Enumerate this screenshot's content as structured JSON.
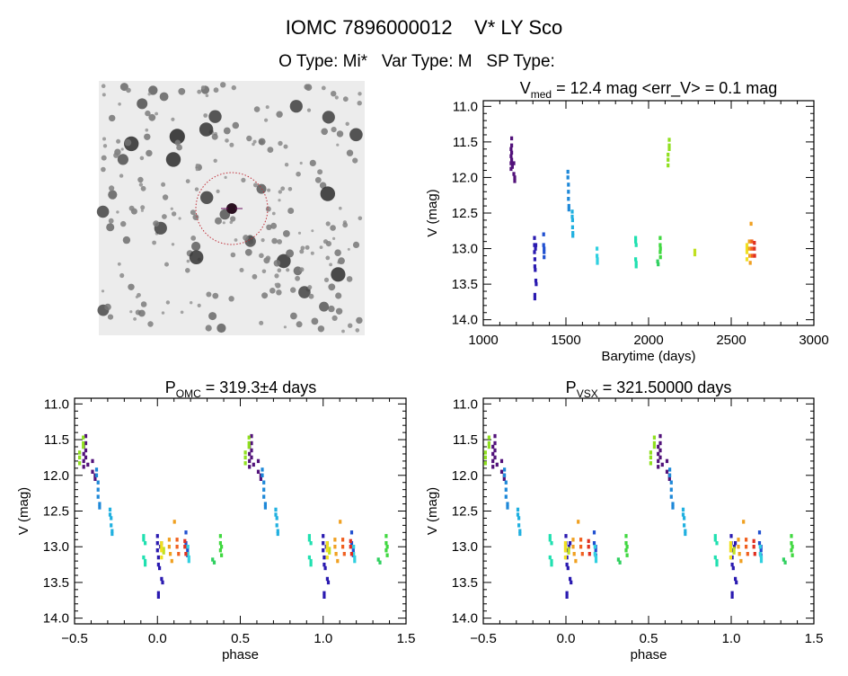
{
  "header": {
    "title": "IOMC 7896000012    V* LY Sco",
    "subtitle": "O Type: Mi*   Var Type: M   SP Type:"
  },
  "finder_image": {
    "circle_color": "#c0303a",
    "marker_color": "#6a1060"
  },
  "chart_data": [
    {
      "type": "scatter",
      "title_main": "V",
      "title_sub": "med",
      "title_rest": " = 12.4 mag <err_V> = 0.1 mag",
      "xlabel": "Barytime (days)",
      "ylabel": "V (mag)",
      "xlim": [
        1000,
        3000
      ],
      "ylim": [
        14.08,
        10.92
      ],
      "xticks": [
        "1000",
        "1500",
        "2000",
        "2500",
        "3000"
      ],
      "yticks": [
        "11.0",
        "11.5",
        "12.0",
        "12.5",
        "13.0",
        "13.5",
        "14.0"
      ],
      "inverted_y": true,
      "grid": false
    },
    {
      "type": "scatter",
      "title_main": "P",
      "title_sub": "OMC",
      "title_rest": " = 319.3±4 days",
      "period_days": 319.3,
      "xlabel": "phase",
      "ylabel": "V (mag)",
      "xlim": [
        -0.5,
        1.5
      ],
      "ylim": [
        14.08,
        10.92
      ],
      "xticks": [
        "−0.5",
        "0.0",
        "0.5",
        "1.0",
        "1.5"
      ],
      "yticks": [
        "11.0",
        "11.5",
        "12.0",
        "12.5",
        "13.0",
        "13.5",
        "14.0"
      ],
      "inverted_y": true,
      "grid": false
    },
    {
      "type": "scatter",
      "title_main": "P",
      "title_sub": "VSX",
      "title_rest": " = 321.50000 days",
      "period_days": 321.5,
      "xlabel": "phase",
      "ylabel": "V (mag)",
      "xlim": [
        -0.5,
        1.5
      ],
      "ylim": [
        14.08,
        10.92
      ],
      "xticks": [
        "−0.5",
        "0.0",
        "0.5",
        "1.0",
        "1.5"
      ],
      "yticks": [
        "11.0",
        "11.5",
        "12.0",
        "12.5",
        "13.0",
        "13.5",
        "14.0"
      ],
      "inverted_y": true,
      "grid": false
    }
  ],
  "observations": [
    {
      "color": "#52127a",
      "points": [
        [
          1168,
          11.6
        ],
        [
          1168,
          11.7
        ],
        [
          1168,
          11.8
        ],
        [
          1168,
          11.88
        ],
        [
          1172,
          11.45
        ],
        [
          1172,
          11.55
        ],
        [
          1172,
          11.65
        ],
        [
          1172,
          11.75
        ],
        [
          1176,
          11.85
        ],
        [
          1185,
          11.8
        ],
        [
          1185,
          11.95
        ],
        [
          1190,
          12.0
        ],
        [
          1190,
          12.05
        ]
      ]
    },
    {
      "color": "#2a1ab0",
      "points": [
        [
          1310,
          12.85
        ],
        [
          1310,
          12.95
        ],
        [
          1310,
          13.05
        ],
        [
          1312,
          13.15
        ],
        [
          1312,
          13.25
        ],
        [
          1314,
          13.3
        ],
        [
          1318,
          13.45
        ],
        [
          1320,
          13.5
        ],
        [
          1312,
          13.65
        ],
        [
          1312,
          13.7
        ],
        [
          1316,
          13.0
        ],
        [
          1318,
          12.95
        ]
      ]
    },
    {
      "color": "#2050d0",
      "points": [
        [
          1365,
          12.8
        ],
        [
          1365,
          12.95
        ],
        [
          1368,
          13.0
        ],
        [
          1368,
          13.05
        ],
        [
          1368,
          13.12
        ]
      ]
    },
    {
      "color": "#1e88d8",
      "points": [
        [
          1512,
          11.92
        ],
        [
          1512,
          12.0
        ],
        [
          1515,
          12.1
        ],
        [
          1515,
          12.2
        ],
        [
          1515,
          12.3
        ],
        [
          1518,
          12.4
        ],
        [
          1518,
          12.45
        ]
      ]
    },
    {
      "color": "#20b0e0",
      "points": [
        [
          1538,
          12.48
        ],
        [
          1538,
          12.55
        ],
        [
          1540,
          12.6
        ],
        [
          1540,
          12.7
        ],
        [
          1542,
          12.78
        ],
        [
          1542,
          12.82
        ]
      ]
    },
    {
      "color": "#30d0e0",
      "points": [
        [
          1688,
          13.0
        ],
        [
          1688,
          13.1
        ],
        [
          1690,
          13.15
        ],
        [
          1690,
          13.2
        ]
      ]
    },
    {
      "color": "#20e0b0",
      "points": [
        [
          1922,
          12.85
        ],
        [
          1922,
          12.9
        ],
        [
          1925,
          12.95
        ],
        [
          1922,
          13.15
        ],
        [
          1925,
          13.2
        ],
        [
          1925,
          13.25
        ]
      ]
    },
    {
      "color": "#30d060",
      "points": [
        [
          2055,
          13.18
        ],
        [
          2058,
          13.22
        ]
      ]
    },
    {
      "color": "#40d840",
      "points": [
        [
          2070,
          12.85
        ],
        [
          2070,
          12.95
        ],
        [
          2072,
          13.0
        ],
        [
          2070,
          13.05
        ],
        [
          2072,
          13.12
        ]
      ]
    },
    {
      "color": "#90e020",
      "points": [
        [
          2125,
          11.47
        ],
        [
          2125,
          11.55
        ],
        [
          2125,
          11.6
        ],
        [
          2118,
          11.68
        ],
        [
          2118,
          11.75
        ],
        [
          2118,
          11.83
        ]
      ]
    },
    {
      "color": "#c0e020",
      "points": [
        [
          2280,
          13.03
        ],
        [
          2280,
          13.08
        ]
      ]
    },
    {
      "color": "#f0e020",
      "points": [
        [
          2595,
          12.95
        ],
        [
          2595,
          13.0
        ],
        [
          2595,
          13.05
        ],
        [
          2595,
          13.15
        ]
      ]
    },
    {
      "color": "#f0a020",
      "points": [
        [
          2610,
          12.9
        ],
        [
          2610,
          13.0
        ],
        [
          2612,
          13.1
        ],
        [
          2615,
          13.2
        ],
        [
          2620,
          12.65
        ]
      ]
    },
    {
      "color": "#f06020",
      "points": [
        [
          2625,
          12.9
        ],
        [
          2625,
          13.0
        ],
        [
          2628,
          13.1
        ]
      ]
    },
    {
      "color": "#e03020",
      "points": [
        [
          2640,
          12.92
        ],
        [
          2640,
          13.0
        ],
        [
          2642,
          13.1
        ]
      ]
    }
  ]
}
